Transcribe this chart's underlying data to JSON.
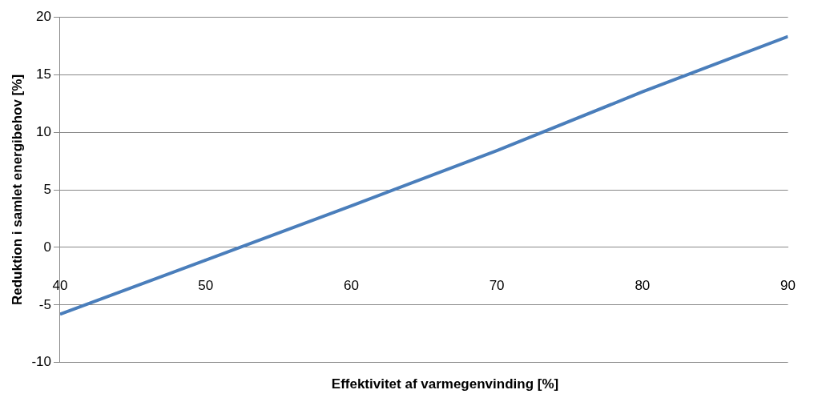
{
  "chart_data": {
    "type": "line",
    "xlabel": "Effektivitet af varmegenvinding [%]",
    "ylabel": "Reduktion i samlet energibehov [%]",
    "x": [
      40,
      50,
      60,
      70,
      80,
      90
    ],
    "series": [
      {
        "color": "#4a7ebb",
        "values": [
          -5.8,
          -1.1,
          3.6,
          8.4,
          13.5,
          18.3
        ]
      }
    ],
    "xlim": [
      40,
      90
    ],
    "xticks": [
      40,
      50,
      60,
      70,
      80,
      90
    ],
    "ylim": [
      -10,
      20
    ],
    "yticks": [
      -10,
      -5,
      0,
      5,
      10,
      15,
      20
    ],
    "grid": "y",
    "legend": false
  }
}
